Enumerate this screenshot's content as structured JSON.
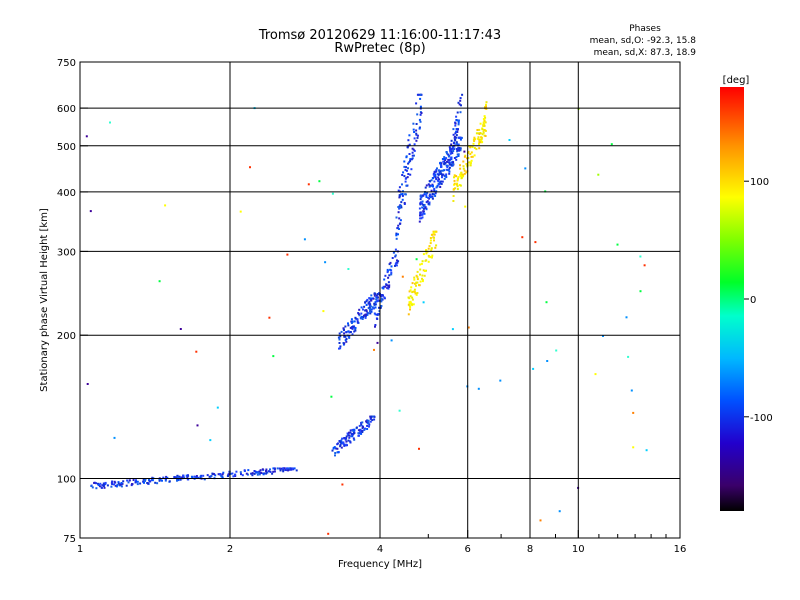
{
  "chart_data": {
    "type": "scatter",
    "title": "Tromsø 20120629 11:16:00-11:17:43",
    "subtitle": "RwPretec (8p)",
    "xlabel": "Frequency [MHz]",
    "ylabel": "Stationary phase Virtual Height [km]",
    "x_scale": "log2",
    "y_scale": "log",
    "xlim": [
      1,
      16
    ],
    "ylim": [
      75,
      750
    ],
    "x_ticks": [
      1,
      2,
      4,
      6,
      8,
      10,
      16
    ],
    "x_minor_ticks": [
      5,
      7,
      9,
      11,
      12,
      13,
      14,
      15
    ],
    "y_ticks": [
      75,
      100,
      200,
      300,
      400,
      500,
      600,
      750
    ],
    "grid": true,
    "phases_stats": {
      "heading": "Phases",
      "o_line": "mean, sd,O: -92.3, 15.8",
      "x_line": "mean, sd,X:  87.3, 18.9"
    },
    "colorbar": {
      "label": "[deg]",
      "range": [
        -180,
        180
      ],
      "ticks": [
        100,
        0,
        -100
      ]
    },
    "colors": {
      "o_mode": "#1a2ee6",
      "x_mode": "#f0ea10",
      "grid": "#000000"
    },
    "series": [
      {
        "mode": "O",
        "phase_deg": -92,
        "segments": [
          {
            "x_range": [
              1.05,
              2.75
            ],
            "y_range": [
              95,
              105
            ],
            "count": 240
          },
          {
            "x_range": [
              3.2,
              3.9
            ],
            "y_range": [
              110,
              135
            ],
            "count": 120
          },
          {
            "x_range": [
              3.3,
              4.0
            ],
            "y_range": [
              185,
              245
            ],
            "count": 140
          },
          {
            "x_range": [
              3.9,
              4.35
            ],
            "y_range": [
              205,
              300
            ],
            "count": 70
          },
          {
            "x_range": [
              4.3,
              4.85
            ],
            "y_range": [
              300,
              640
            ],
            "count": 110
          },
          {
            "x_range": [
              4.8,
              5.85
            ],
            "y_range": [
              345,
              520
            ],
            "count": 240
          },
          {
            "x_range": [
              5.5,
              5.85
            ],
            "y_range": [
              430,
              640
            ],
            "count": 50
          }
        ]
      },
      {
        "mode": "X",
        "phase_deg": 87,
        "segments": [
          {
            "x_range": [
              4.55,
              5.2
            ],
            "y_range": [
              215,
              330
            ],
            "count": 90
          },
          {
            "x_range": [
              5.6,
              6.55
            ],
            "y_range": [
              380,
              560
            ],
            "count": 110
          },
          {
            "x_range": [
              6.4,
              6.55
            ],
            "y_range": [
              500,
              620
            ],
            "count": 20
          }
        ]
      },
      {
        "mode": "scattered",
        "phase_deg": null,
        "segments": [
          {
            "x_range": [
              1.0,
              15.0
            ],
            "y_range": [
              75,
              600
            ],
            "count": 70
          }
        ]
      }
    ]
  }
}
